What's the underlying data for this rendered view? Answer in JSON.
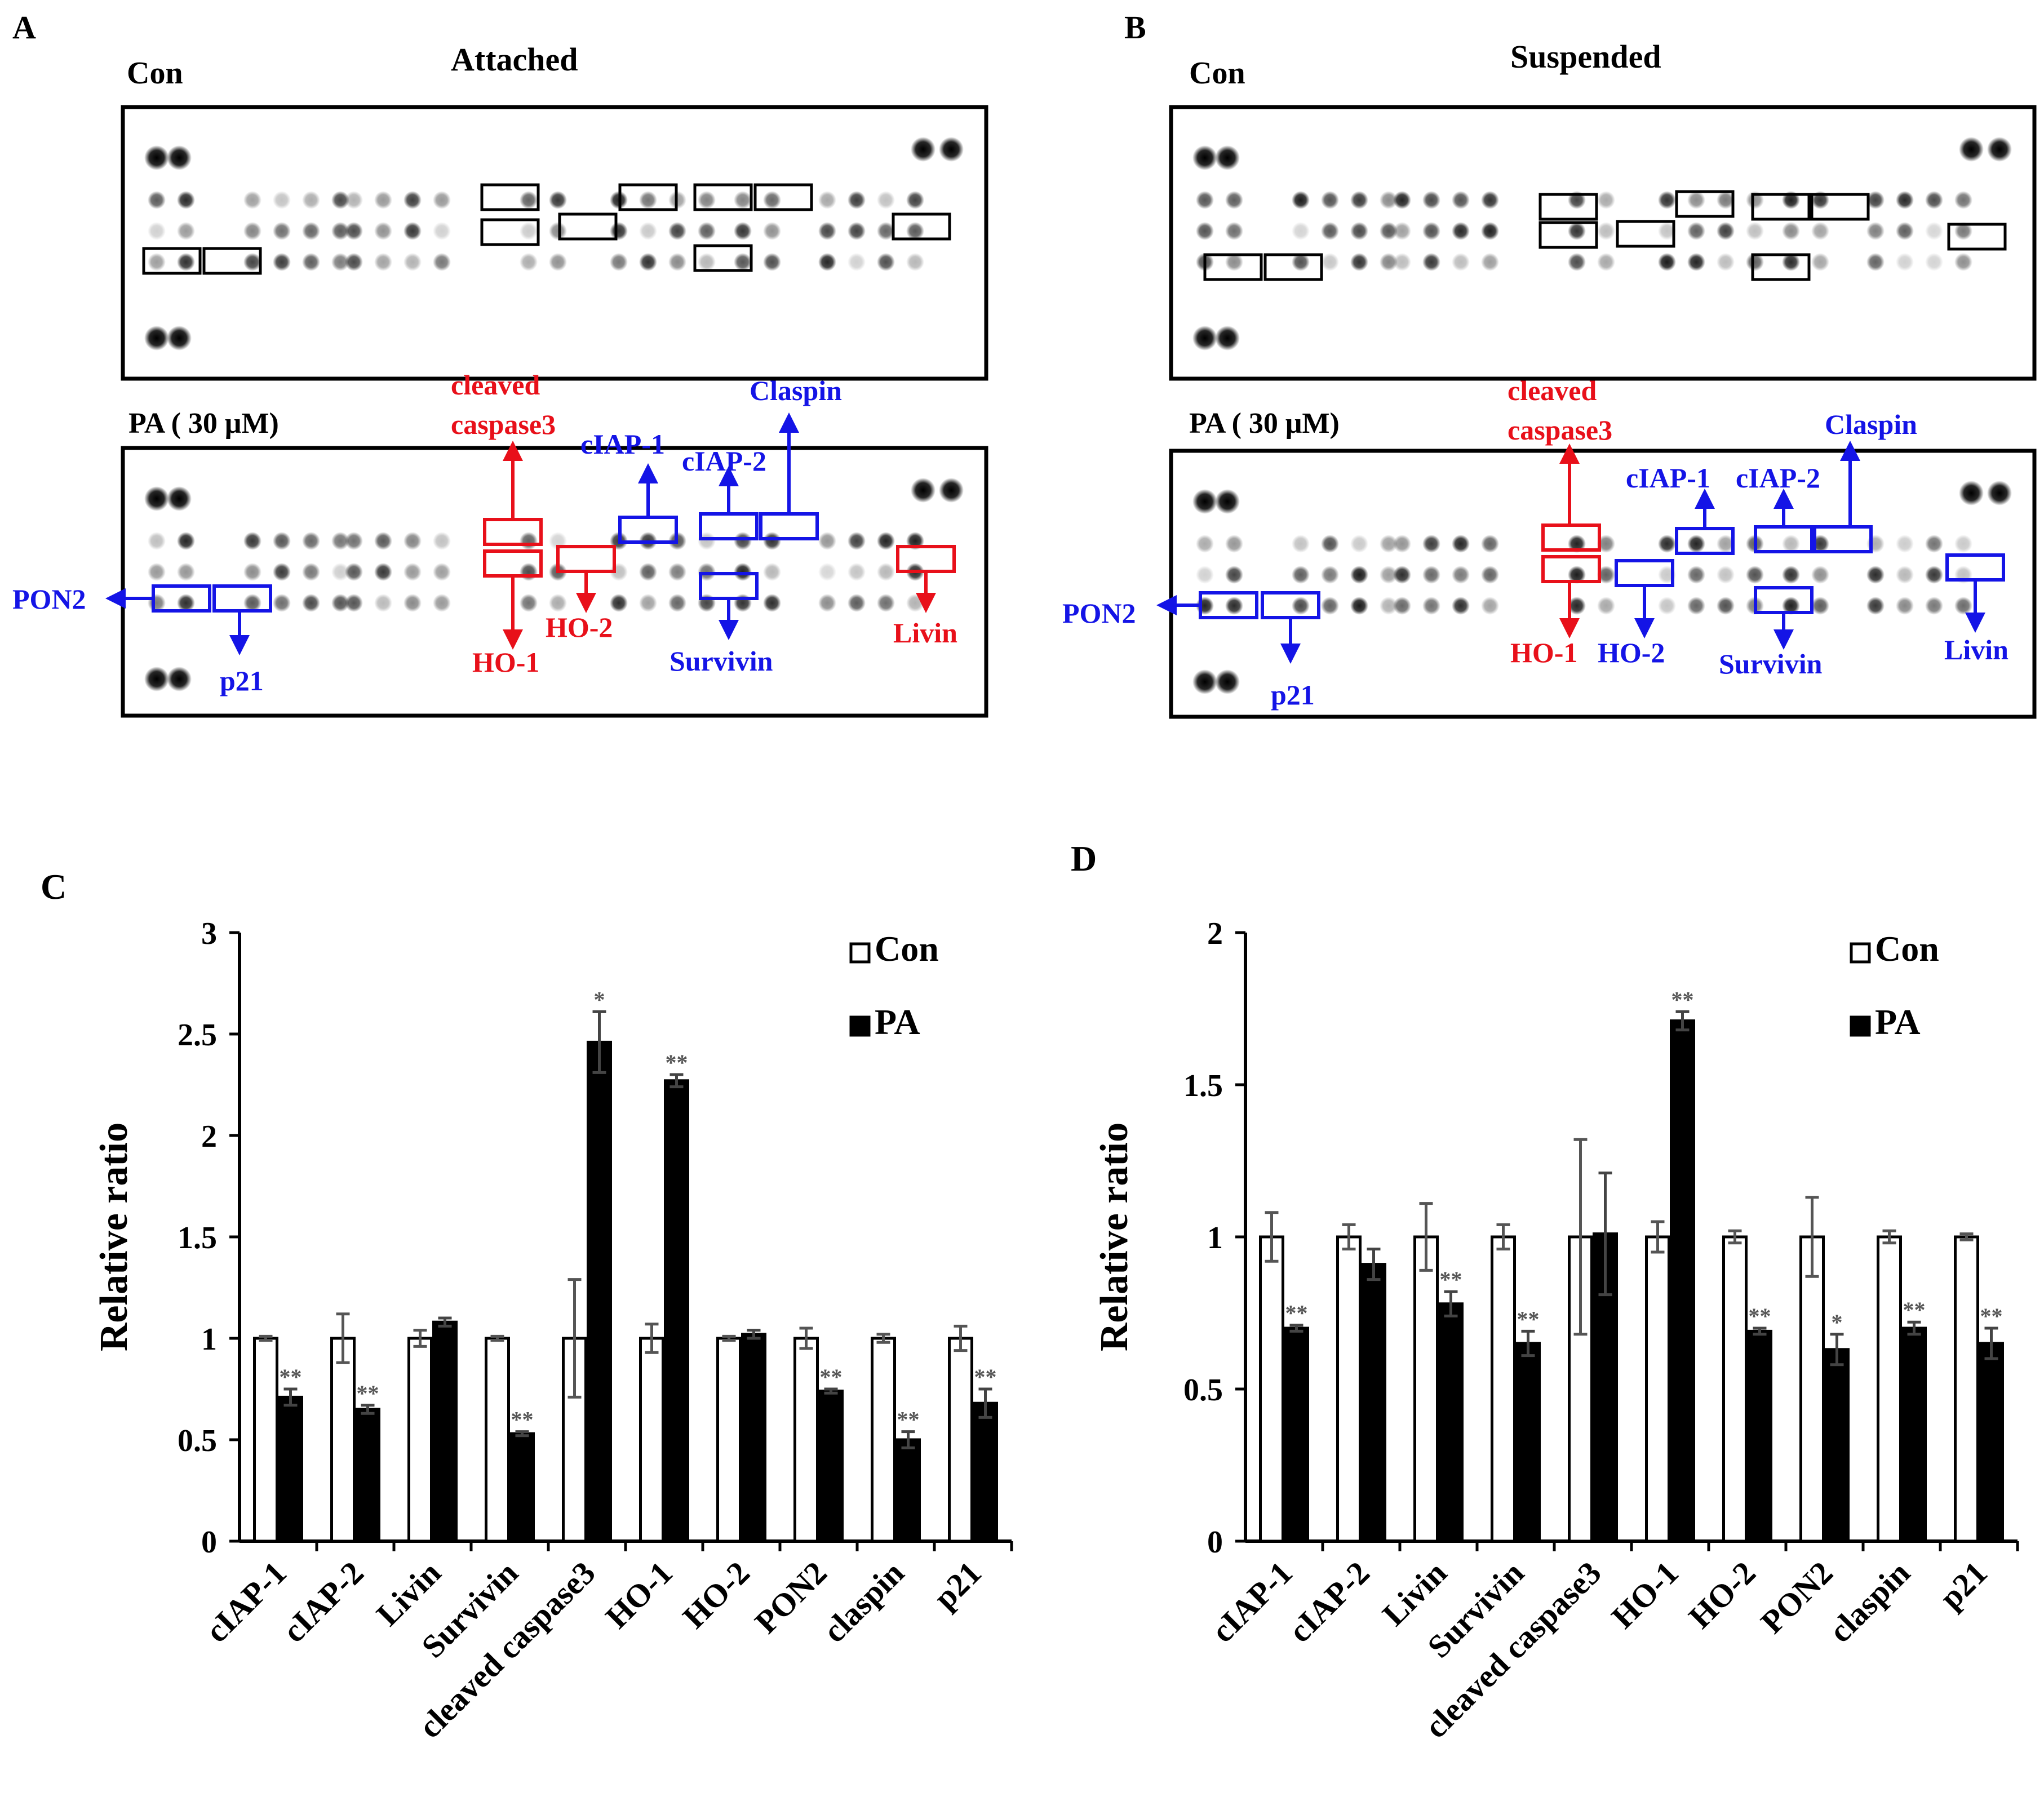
{
  "panels": {
    "A": {
      "letter": "A",
      "title": "Attached",
      "con_label": "Con",
      "pa_label": "PA ( 30 μM)",
      "labels": {
        "cleaved1": "cleaved",
        "cleaved2": "caspase3",
        "ciap1": "cIAP-1",
        "ciap2": "cIAP-2",
        "claspin": "Claspin",
        "pon2": "PON2",
        "p21": "p21",
        "ho1": "HO-1",
        "ho2": "HO-2",
        "survivin": "Survivin",
        "livin": "Livin"
      }
    },
    "B": {
      "letter": "B",
      "title": "Suspended",
      "con_label": "Con",
      "pa_label": "PA ( 30 μM)",
      "labels": {
        "cleaved1": "cleaved",
        "cleaved2": "caspase3",
        "ciap1": "cIAP-1",
        "ciap2": "cIAP-2",
        "claspin": "Claspin",
        "pon2": "PON2",
        "p21": "p21",
        "ho1": "HO-1",
        "ho2": "HO-2",
        "survivin": "Survivin",
        "livin": "Livin"
      }
    }
  },
  "colors": {
    "red": "#e8101a",
    "blue": "#1414e6",
    "black": "#000000"
  },
  "chart_data": [
    {
      "panel": "C",
      "type": "bar",
      "ylabel": "Relative ratio",
      "ylim": [
        0,
        3
      ],
      "yticks": [
        0,
        0.5,
        1,
        1.5,
        2,
        2.5,
        3
      ],
      "ytick_labels": [
        "0",
        "0.5",
        "1",
        "1.5",
        "2",
        "2.5",
        "3"
      ],
      "categories": [
        "cIAP-1",
        "cIAP-2",
        "Livin",
        "Survivin",
        "cleaved caspase3",
        "HO-1",
        "HO-2",
        "PON2",
        "claspin",
        "p21"
      ],
      "legend": [
        "Con",
        "PA"
      ],
      "legend_position": "top-right",
      "series": [
        {
          "name": "Con",
          "values": [
            1.0,
            1.0,
            1.0,
            1.0,
            1.0,
            1.0,
            1.0,
            1.0,
            1.0,
            1.0
          ],
          "errors": [
            0.01,
            0.12,
            0.04,
            0.01,
            0.29,
            0.07,
            0.01,
            0.05,
            0.02,
            0.06
          ],
          "marks": [
            "",
            "",
            "",
            "",
            "",
            "",
            "",
            "",
            "",
            ""
          ]
        },
        {
          "name": "PA",
          "values": [
            0.71,
            0.65,
            1.08,
            0.53,
            2.46,
            2.27,
            1.02,
            0.74,
            0.5,
            0.68
          ],
          "errors": [
            0.04,
            0.02,
            0.02,
            0.01,
            0.15,
            0.03,
            0.02,
            0.01,
            0.04,
            0.07
          ],
          "marks": [
            "**",
            "**",
            "",
            "**",
            "*",
            "**",
            "",
            "**",
            "**",
            "**"
          ]
        }
      ]
    },
    {
      "panel": "D",
      "type": "bar",
      "ylabel": "Relative ratio",
      "ylim": [
        0,
        2
      ],
      "yticks": [
        0,
        0.5,
        1,
        1.5,
        2
      ],
      "ytick_labels": [
        "0",
        "0.5",
        "1",
        "1.5",
        "2"
      ],
      "categories": [
        "cIAP-1",
        "cIAP-2",
        "Livin",
        "Survivin",
        "cleaved caspase3",
        "HO-1",
        "HO-2",
        "PON2",
        "claspin",
        "p21"
      ],
      "legend": [
        "Con",
        "PA"
      ],
      "legend_position": "top-right",
      "series": [
        {
          "name": "Con",
          "values": [
            1.0,
            1.0,
            1.0,
            1.0,
            1.0,
            1.0,
            1.0,
            1.0,
            1.0,
            1.0
          ],
          "errors": [
            0.08,
            0.04,
            0.11,
            0.04,
            0.32,
            0.05,
            0.02,
            0.13,
            0.02,
            0.01
          ],
          "marks": [
            "",
            "",
            "",
            "",
            "",
            "",
            "",
            "",
            "",
            ""
          ]
        },
        {
          "name": "PA",
          "values": [
            0.7,
            0.91,
            0.78,
            0.65,
            1.01,
            1.71,
            0.69,
            0.63,
            0.7,
            0.65
          ],
          "errors": [
            0.01,
            0.05,
            0.04,
            0.04,
            0.2,
            0.03,
            0.01,
            0.05,
            0.02,
            0.05
          ],
          "marks": [
            "**",
            "",
            "**",
            "**",
            "",
            "**",
            "**",
            "*",
            "**",
            "**"
          ]
        }
      ]
    }
  ]
}
